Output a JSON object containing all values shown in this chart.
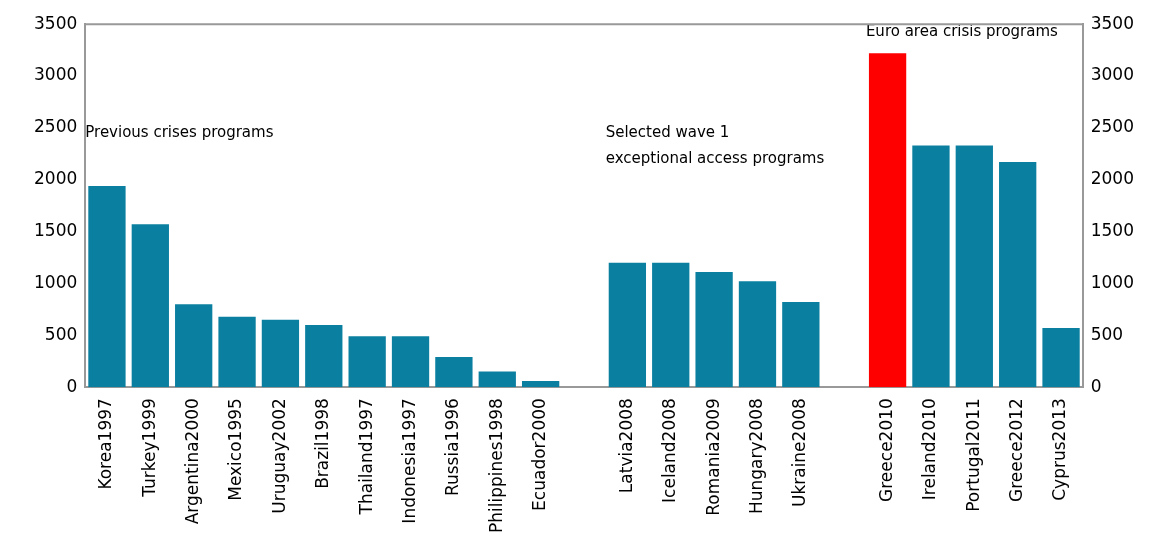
{
  "chart_data": {
    "type": "bar",
    "categories": [
      "Korea1997",
      "Turkey1999",
      "Argentina2000",
      "Mexico1995",
      "Uruguay2002",
      "Brazil1998",
      "Thailand1997",
      "Indonesia1997",
      "Russia1996",
      "Philippines1998",
      "Ecuador2000",
      null,
      "Latvia2008",
      "Iceland2008",
      "Romania2009",
      "Hungary2008",
      "Ukraine2008",
      null,
      "Greece2010",
      "Ireland2010",
      "Portugal2011",
      "Greece2012",
      "Cyprus2013"
    ],
    "values": [
      1940,
      1570,
      800,
      680,
      650,
      600,
      490,
      490,
      290,
      150,
      60,
      null,
      1200,
      1200,
      1110,
      1020,
      820,
      null,
      3220,
      2330,
      2330,
      2170,
      570
    ],
    "colors": [
      "#0a7fa0",
      "#0a7fa0",
      "#0a7fa0",
      "#0a7fa0",
      "#0a7fa0",
      "#0a7fa0",
      "#0a7fa0",
      "#0a7fa0",
      "#0a7fa0",
      "#0a7fa0",
      "#0a7fa0",
      "#0a7fa0",
      "#0a7fa0",
      "#0a7fa0",
      "#0a7fa0",
      "#0a7fa0",
      "#0a7fa0",
      "#0a7fa0",
      "#ff0000",
      "#0a7fa0",
      "#0a7fa0",
      "#0a7fa0",
      "#0a7fa0"
    ],
    "ylim": [
      0,
      3500
    ],
    "yticks": [
      0,
      500,
      1000,
      1500,
      2000,
      2500,
      3000,
      3500
    ],
    "y2lim": [
      0,
      3500
    ],
    "y2ticks": [
      0,
      500,
      1000,
      1500,
      2000,
      2500,
      3000,
      3500
    ],
    "annotations": [
      "Previous crises programs",
      "Selected wave 1\nexceptional access programs",
      "Euro area crisis programs"
    ],
    "grid": false,
    "legend": false
  }
}
